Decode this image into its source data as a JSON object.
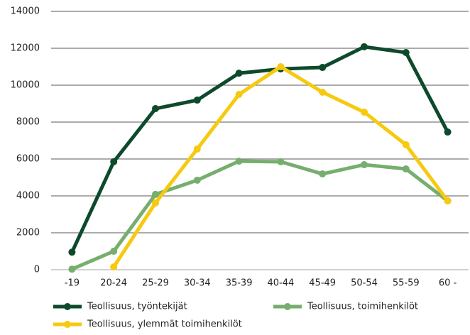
{
  "chart_data": {
    "type": "line",
    "categories": [
      "-19",
      "20-24",
      "25-29",
      "30-34",
      "35-39",
      "40-44",
      "45-49",
      "50-54",
      "55-59",
      "60 -"
    ],
    "series": [
      {
        "name": "Teollisuus, työntekijät",
        "color": "#0d4a2c",
        "values": [
          950,
          5850,
          8730,
          9190,
          10650,
          10880,
          10960,
          12080,
          11770,
          7460
        ]
      },
      {
        "name": "Teollisuus, toimihenkilöt",
        "color": "#76ae6e",
        "values": [
          30,
          1000,
          4080,
          4850,
          5880,
          5850,
          5190,
          5690,
          5460,
          3730
        ]
      },
      {
        "name": "Teollisuus, ylemmät toimihenkilöt",
        "color": "#f7c90f",
        "values": [
          null,
          150,
          3620,
          6540,
          9500,
          11000,
          9620,
          8540,
          6770,
          3730
        ]
      }
    ],
    "ylim": [
      0,
      14000
    ],
    "yticks": [
      0,
      2000,
      4000,
      6000,
      8000,
      10000,
      12000,
      14000
    ],
    "grid": true,
    "legend": "bottom"
  }
}
